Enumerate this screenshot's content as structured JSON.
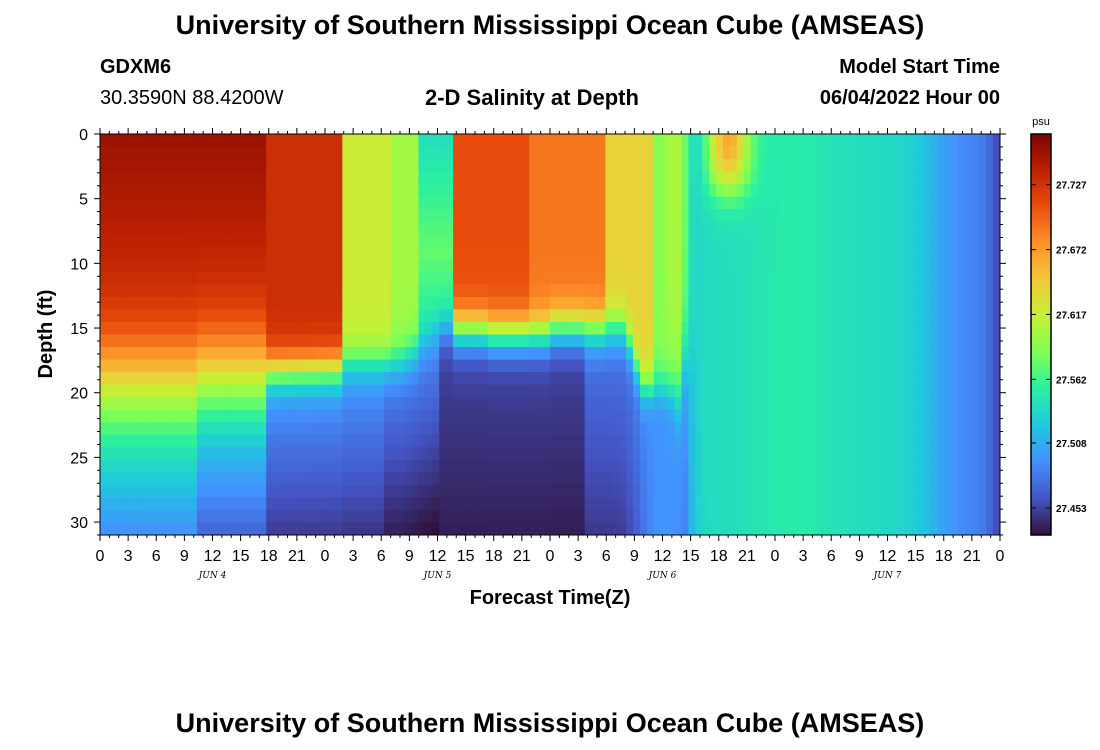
{
  "header": {
    "title": "University of Southern Mississippi Ocean Cube (AMSEAS)",
    "station_id": "GDXM6",
    "station_coords": "30.3590N  88.4200W",
    "plot_title": "2-D Salinity at Depth",
    "model_start_label": "Model Start Time",
    "model_start_value": "06/04/2022 Hour 00"
  },
  "footer": {
    "title": "University of Southern Mississippi Ocean Cube (AMSEAS)"
  },
  "chart_data": {
    "type": "heatmap",
    "title": "2-D Salinity at Depth",
    "xlabel": "Forecast Time(Z)",
    "ylabel": "Depth (ft)",
    "units": "psu",
    "x_range_hours": [
      0,
      96
    ],
    "y_range_ft": [
      0,
      31
    ],
    "x_tick_labels": [
      "0",
      "3",
      "6",
      "9",
      "12",
      "15",
      "18",
      "21",
      "0",
      "3",
      "6",
      "9",
      "12",
      "15",
      "18",
      "21",
      "0",
      "3",
      "6",
      "9",
      "12",
      "15",
      "18",
      "21",
      "0",
      "3",
      "6",
      "9",
      "12",
      "15",
      "18",
      "21",
      "0"
    ],
    "day_labels": [
      {
        "label": "JUN 4",
        "hour": 12
      },
      {
        "label": "JUN 5",
        "hour": 36
      },
      {
        "label": "JUN 6",
        "hour": 60
      },
      {
        "label": "JUN 7",
        "hour": 84
      }
    ],
    "y_ticks": [
      0,
      5,
      10,
      15,
      20,
      25,
      30
    ],
    "colorbar": {
      "min": 27.43,
      "max": 27.77,
      "tick_values": [
        "27.727",
        "27.672",
        "27.617",
        "27.562",
        "27.508",
        "27.453"
      ],
      "colors": [
        "#30123b",
        "#4454c4",
        "#4490fe",
        "#1fc8de",
        "#29efa2",
        "#7eff55",
        "#c3f134",
        "#f1ca3a",
        "#fe922a",
        "#ea4f0d",
        "#be2102",
        "#7a0403"
      ]
    },
    "description_points": [
      {
        "hour": 4,
        "depth_ft": 10,
        "psu": 27.75
      },
      {
        "hour": 18,
        "depth_ft": 27,
        "psu": 27.45
      },
      {
        "hour": 42,
        "depth_ft": 5,
        "psu": 27.72
      },
      {
        "hour": 54,
        "depth_ft": 10,
        "psu": 27.67
      },
      {
        "hour": 66,
        "depth_ft": 1,
        "psu": 27.66
      },
      {
        "hour": 84,
        "depth_ft": 15,
        "psu": 27.54
      }
    ]
  }
}
